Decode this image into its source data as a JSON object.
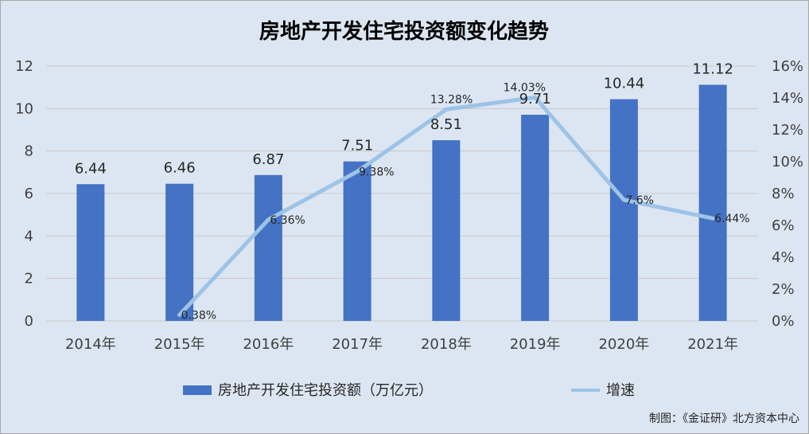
{
  "chart_data": {
    "type": "bar",
    "title": "房地产开发住宅投资额变化趋势",
    "categories": [
      "2014年",
      "2015年",
      "2016年",
      "2017年",
      "2018年",
      "2019年",
      "2020年",
      "2021年"
    ],
    "series": [
      {
        "name": "房地产开发住宅投资额（万亿元）",
        "type": "bar",
        "axis": "left",
        "color": "#4472c4",
        "values": [
          6.44,
          6.46,
          6.87,
          7.51,
          8.51,
          9.71,
          10.44,
          11.12
        ],
        "labels": [
          "6.44",
          "6.46",
          "6.87",
          "7.51",
          "8.51",
          "9.71",
          "10.44",
          "11.12"
        ]
      },
      {
        "name": "增速",
        "type": "line",
        "axis": "right",
        "color": "#9dc3e6",
        "values": [
          null,
          0.38,
          6.36,
          9.38,
          13.28,
          14.03,
          7.6,
          6.44
        ],
        "labels": [
          "",
          "0.38%",
          "6.36%",
          "9.38%",
          "13.28%",
          "14.03%",
          "7.6%",
          "6.44%"
        ]
      }
    ],
    "y_left": {
      "min": 0,
      "max": 12,
      "ticks": [
        "0",
        "2",
        "4",
        "6",
        "8",
        "10",
        "12"
      ]
    },
    "y_right": {
      "min": 0,
      "max": 16,
      "ticks": [
        "0%",
        "2%",
        "4%",
        "6%",
        "8%",
        "10%",
        "12%",
        "14%",
        "16%"
      ]
    },
    "grid": true,
    "legend_position": "bottom"
  },
  "source_note": "制图：《金证研》北方资本中心"
}
